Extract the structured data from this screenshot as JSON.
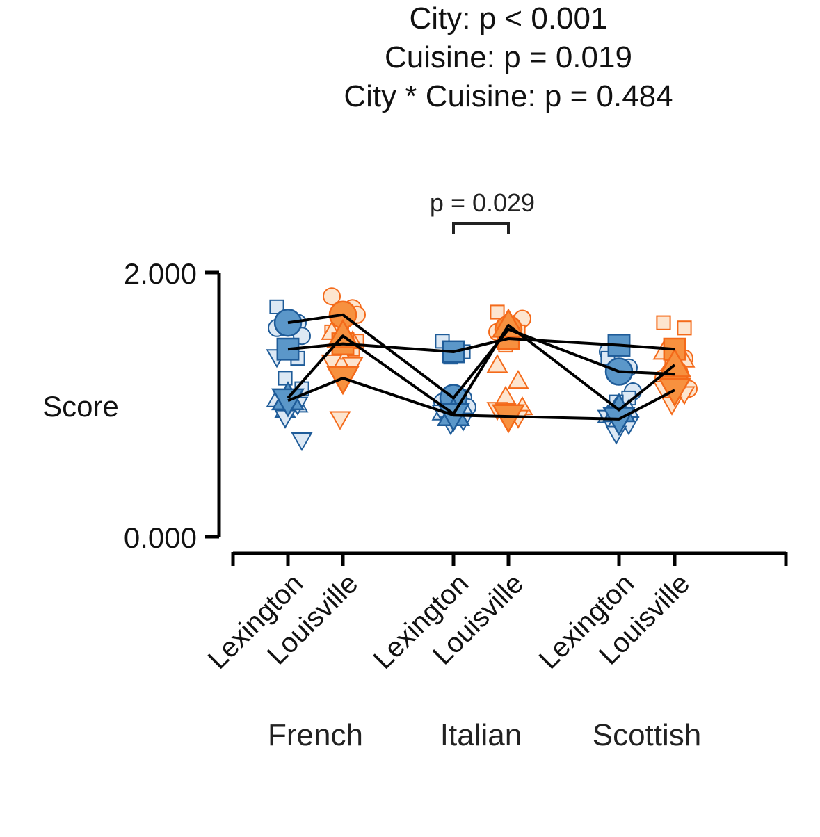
{
  "chart_data": {
    "type": "scatter",
    "title_lines": [
      "City: p < 0.001",
      "Cuisine: p = 0.019",
      "City * Cuisine: p = 0.484"
    ],
    "ylabel": "Score",
    "ylim": [
      0,
      2
    ],
    "y_ticks": [
      "2.000",
      "0.000"
    ],
    "groups": [
      {
        "name": "French",
        "cities": [
          "Lexington",
          "Louisville"
        ]
      },
      {
        "name": "Italian",
        "cities": [
          "Lexington",
          "Louisville"
        ]
      },
      {
        "name": "Scottish",
        "cities": [
          "Lexington",
          "Louisville"
        ]
      }
    ],
    "comparison": {
      "group": "Italian",
      "label": "p = 0.029"
    },
    "city_colors": {
      "Lexington": {
        "fill": "#5b97c9",
        "light": "#dce8f4",
        "stroke": "#1f5c99"
      },
      "Louisville": {
        "fill": "#f7913f",
        "light": "#fde5cf",
        "stroke": "#f46a1a"
      }
    },
    "series": [
      {
        "marker": "circle",
        "means": [
          [
            1.62,
            1.68
          ],
          [
            1.05,
            1.57
          ],
          [
            1.25,
            1.23
          ]
        ]
      },
      {
        "marker": "square",
        "means": [
          [
            1.42,
            1.46
          ],
          [
            1.4,
            1.5
          ],
          [
            1.45,
            1.42
          ]
        ]
      },
      {
        "marker": "triangle-up",
        "means": [
          [
            1.05,
            1.52
          ],
          [
            0.93,
            1.6
          ],
          [
            0.96,
            1.3
          ]
        ]
      },
      {
        "marker": "triangle-down",
        "means": [
          [
            1.03,
            1.2
          ],
          [
            0.92,
            0.91
          ],
          [
            0.89,
            1.11
          ]
        ]
      }
    ],
    "points": {
      "circle": [
        [
          1.58,
          1.62,
          1.65,
          1.52
        ],
        [
          1.82,
          1.73,
          1.58,
          1.68
        ],
        [
          1.02,
          1.05,
          1.08,
          0.98
        ],
        [
          1.55,
          1.62,
          1.5,
          1.65
        ],
        [
          1.4,
          1.28,
          1.22,
          1.1
        ],
        [
          1.2,
          1.35,
          1.1,
          1.12
        ]
      ],
      "square": [
        [
          1.74,
          1.35,
          1.2,
          1.12
        ],
        [
          1.55,
          1.42,
          1.33,
          1.48
        ],
        [
          1.48,
          1.4,
          1.36
        ],
        [
          1.7,
          1.55,
          1.45
        ],
        [
          1.35,
          1.05,
          1.02
        ],
        [
          1.62,
          1.58,
          1.28
        ]
      ],
      "triangle-up": [
        [
          1.04,
          1.0,
          0.96
        ],
        [
          1.55,
          1.48,
          1.4
        ],
        [
          0.94,
          0.98,
          0.9
        ],
        [
          1.3,
          1.18,
          1.06,
          0.98
        ],
        [
          0.92,
          0.96,
          0.98
        ],
        [
          1.4,
          1.34,
          1.22
        ]
      ],
      "triangle-down": [
        [
          1.36,
          1.0,
          0.9,
          0.73
        ],
        [
          1.32,
          1.3,
          0.89
        ],
        [
          0.94,
          0.88,
          0.85
        ],
        [
          0.96,
          0.9,
          0.95
        ],
        [
          0.9,
          0.85,
          0.78
        ],
        [
          1.12,
          1.08,
          1.0
        ]
      ]
    }
  }
}
